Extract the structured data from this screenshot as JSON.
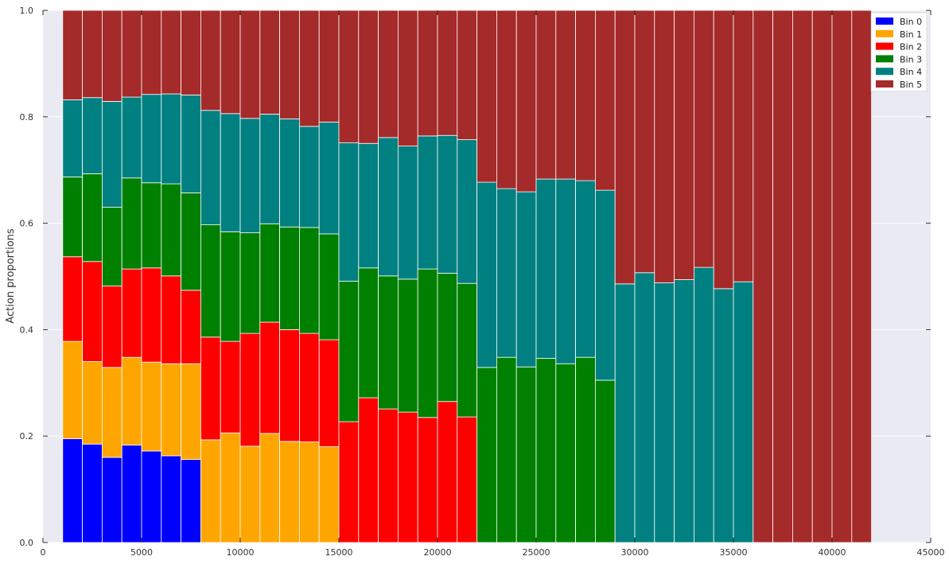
{
  "chart_data": {
    "type": "bar",
    "stacked": true,
    "title": "",
    "xlabel": "",
    "ylabel": "Action proportions",
    "xlim": [
      0,
      45000
    ],
    "ylim": [
      0,
      1.0
    ],
    "grid": true,
    "legend_position": "top-right",
    "x_ticks": [
      0,
      5000,
      10000,
      15000,
      20000,
      25000,
      30000,
      35000,
      40000,
      45000
    ],
    "y_ticks": [
      0.0,
      0.2,
      0.4,
      0.6,
      0.8,
      1.0
    ],
    "x_tick_labels": [
      "0",
      "5000",
      "10000",
      "15000",
      "20000",
      "25000",
      "30000",
      "35000",
      "40000",
      "45000"
    ],
    "y_tick_labels": [
      "0.0",
      "0.2",
      "0.4",
      "0.6",
      "0.8",
      "1.0"
    ],
    "bar_width": 1000,
    "x": [
      1000,
      2000,
      3000,
      4000,
      5000,
      6000,
      7000,
      8000,
      9000,
      10000,
      11000,
      12000,
      13000,
      14000,
      15000,
      16000,
      17000,
      18000,
      19000,
      20000,
      21000,
      22000,
      23000,
      24000,
      25000,
      26000,
      27000,
      28000,
      29000,
      30000,
      31000,
      32000,
      33000,
      34000,
      35000,
      36000,
      37000,
      38000,
      39000,
      40000,
      41000
    ],
    "series": [
      {
        "name": "Bin 0",
        "color": "#0000ff",
        "values": [
          0.195,
          0.185,
          0.16,
          0.183,
          0.172,
          0.163,
          0.156,
          0,
          0,
          0,
          0,
          0,
          0,
          0,
          0,
          0,
          0,
          0,
          0,
          0,
          0,
          0,
          0,
          0,
          0,
          0,
          0,
          0,
          0,
          0,
          0,
          0,
          0,
          0,
          0,
          0,
          0,
          0,
          0,
          0,
          0
        ]
      },
      {
        "name": "Bin 1",
        "color": "#ffa500",
        "values": [
          0.183,
          0.155,
          0.169,
          0.165,
          0.167,
          0.173,
          0.18,
          0.193,
          0.206,
          0.181,
          0.205,
          0.19,
          0.189,
          0.18,
          0,
          0,
          0,
          0,
          0,
          0,
          0,
          0,
          0,
          0,
          0,
          0,
          0,
          0,
          0,
          0,
          0,
          0,
          0,
          0,
          0,
          0,
          0,
          0,
          0,
          0,
          0
        ]
      },
      {
        "name": "Bin 2",
        "color": "#ff0000",
        "values": [
          0.159,
          0.188,
          0.153,
          0.166,
          0.177,
          0.165,
          0.138,
          0.193,
          0.172,
          0.212,
          0.209,
          0.21,
          0.204,
          0.201,
          0.227,
          0.272,
          0.251,
          0.245,
          0.235,
          0.265,
          0.236,
          0,
          0,
          0,
          0,
          0,
          0,
          0,
          0,
          0,
          0,
          0,
          0,
          0,
          0,
          0,
          0,
          0,
          0,
          0,
          0
        ]
      },
      {
        "name": "Bin 3",
        "color": "#008000",
        "values": [
          0.15,
          0.165,
          0.148,
          0.171,
          0.16,
          0.173,
          0.183,
          0.211,
          0.206,
          0.189,
          0.185,
          0.193,
          0.199,
          0.199,
          0.264,
          0.244,
          0.25,
          0.25,
          0.279,
          0.241,
          0.251,
          0.329,
          0.348,
          0.33,
          0.346,
          0.336,
          0.348,
          0.305,
          0,
          0,
          0,
          0,
          0,
          0,
          0,
          0,
          0,
          0,
          0,
          0,
          0
        ]
      },
      {
        "name": "Bin 4",
        "color": "#008080",
        "values": [
          0.145,
          0.143,
          0.199,
          0.152,
          0.166,
          0.169,
          0.184,
          0.215,
          0.222,
          0.215,
          0.206,
          0.203,
          0.19,
          0.21,
          0.26,
          0.234,
          0.26,
          0.25,
          0.25,
          0.259,
          0.27,
          0.348,
          0.317,
          0.329,
          0.337,
          0.347,
          0.332,
          0.357,
          0.486,
          0.507,
          0.488,
          0.494,
          0.517,
          0.477,
          0.49,
          0,
          0,
          0,
          0,
          0,
          0
        ]
      },
      {
        "name": "Bin 5",
        "color": "#a52a2a",
        "values": [
          0.168,
          0.164,
          0.171,
          0.163,
          0.158,
          0.157,
          0.159,
          0.188,
          0.194,
          0.203,
          0.195,
          0.204,
          0.218,
          0.21,
          0.249,
          0.25,
          0.239,
          0.255,
          0.236,
          0.235,
          0.243,
          0.323,
          0.335,
          0.341,
          0.317,
          0.317,
          0.32,
          0.338,
          0.514,
          0.493,
          0.512,
          0.506,
          0.483,
          0.523,
          0.51,
          1.0,
          1.0,
          1.0,
          1.0,
          1.0,
          1.0
        ]
      }
    ]
  }
}
